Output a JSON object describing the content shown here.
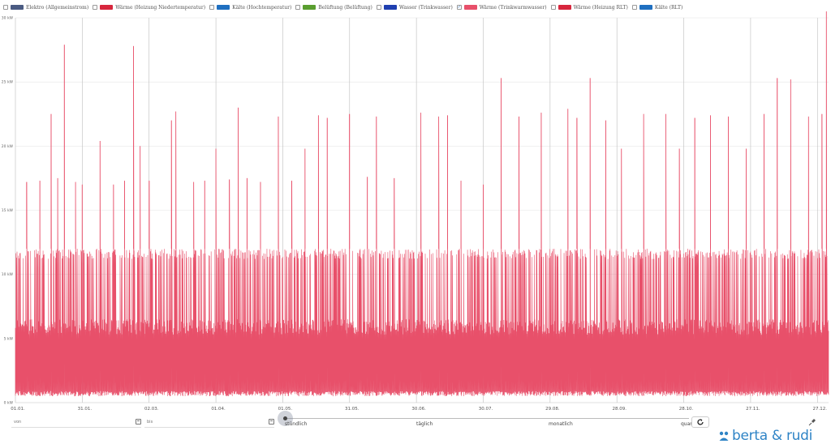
{
  "legend": [
    {
      "label": "Elektro (Allgemeinstrom)",
      "color": "#4a5b82",
      "checked": false
    },
    {
      "label": "Wärme (Heizung Niedertemperatur)",
      "color": "#d7263d",
      "checked": false
    },
    {
      "label": "Kälte (Hochtemperatur)",
      "color": "#1f6fc0",
      "checked": false
    },
    {
      "label": "Belüftung (Belüftung)",
      "color": "#5a9e2f",
      "checked": false
    },
    {
      "label": "Wasser (Trinkwasser)",
      "color": "#1f3fb0",
      "checked": false
    },
    {
      "label": "Wärme (Trinkwarmwasser)",
      "color": "#e8506a",
      "checked": true
    },
    {
      "label": "Wärme (Heizung RLT)",
      "color": "#d7263d",
      "checked": false
    },
    {
      "label": "Kälte (RLT)",
      "color": "#1f6fc0",
      "checked": false
    }
  ],
  "chart_data": {
    "type": "line",
    "ylim": [
      0,
      30
    ],
    "y_ticks": [
      0,
      5,
      10,
      15,
      20,
      25,
      30
    ],
    "y_tick_labels": [
      "0 kW",
      "5 kW",
      "10 kW",
      "15 kW",
      "20 kW",
      "25 kW",
      "30 kW"
    ],
    "x_range_days": [
      0,
      365
    ],
    "x_ticks": [
      {
        "day": 0,
        "label": "01.01."
      },
      {
        "day": 30,
        "label": "31.01."
      },
      {
        "day": 60,
        "label": "02.03."
      },
      {
        "day": 90,
        "label": "01.04."
      },
      {
        "day": 120,
        "label": "01.05."
      },
      {
        "day": 150,
        "label": "31.05."
      },
      {
        "day": 180,
        "label": "30.06."
      },
      {
        "day": 210,
        "label": "30.07."
      },
      {
        "day": 240,
        "label": "29.08."
      },
      {
        "day": 270,
        "label": "28.09."
      },
      {
        "day": 300,
        "label": "28.10."
      },
      {
        "day": 330,
        "label": "27.11."
      },
      {
        "day": 360,
        "label": "27.12."
      }
    ],
    "series": [
      {
        "name": "Wärme (Trinkwarmwasser)",
        "color": "#e8506a",
        "resolution": "stündlich",
        "typical_base_kw": 0.5,
        "typical_low_peak_kw": 6.5,
        "typical_high_peak_kw": 12,
        "spikes": [
          {
            "day": 5,
            "value": 17.2
          },
          {
            "day": 11,
            "value": 17.3
          },
          {
            "day": 16,
            "value": 22.5
          },
          {
            "day": 19,
            "value": 17.5
          },
          {
            "day": 22,
            "value": 27.9
          },
          {
            "day": 27,
            "value": 17.2
          },
          {
            "day": 30,
            "value": 17.0
          },
          {
            "day": 38,
            "value": 20.4
          },
          {
            "day": 44,
            "value": 17.0
          },
          {
            "day": 49,
            "value": 17.3
          },
          {
            "day": 53,
            "value": 27.8
          },
          {
            "day": 56,
            "value": 20.0
          },
          {
            "day": 60,
            "value": 17.3
          },
          {
            "day": 70,
            "value": 22.0
          },
          {
            "day": 72,
            "value": 22.7
          },
          {
            "day": 80,
            "value": 17.2
          },
          {
            "day": 85,
            "value": 17.3
          },
          {
            "day": 90,
            "value": 19.8
          },
          {
            "day": 96,
            "value": 17.4
          },
          {
            "day": 100,
            "value": 23.0
          },
          {
            "day": 104,
            "value": 17.5
          },
          {
            "day": 110,
            "value": 17.2
          },
          {
            "day": 118,
            "value": 22.3
          },
          {
            "day": 124,
            "value": 17.3
          },
          {
            "day": 130,
            "value": 19.8
          },
          {
            "day": 136,
            "value": 22.4
          },
          {
            "day": 140,
            "value": 22.2
          },
          {
            "day": 150,
            "value": 22.5
          },
          {
            "day": 158,
            "value": 17.6
          },
          {
            "day": 162,
            "value": 22.3
          },
          {
            "day": 170,
            "value": 17.5
          },
          {
            "day": 182,
            "value": 22.6
          },
          {
            "day": 190,
            "value": 22.3
          },
          {
            "day": 194,
            "value": 22.4
          },
          {
            "day": 200,
            "value": 17.3
          },
          {
            "day": 210,
            "value": 17.0
          },
          {
            "day": 218,
            "value": 25.3
          },
          {
            "day": 226,
            "value": 22.3
          },
          {
            "day": 236,
            "value": 22.6
          },
          {
            "day": 248,
            "value": 22.9
          },
          {
            "day": 252,
            "value": 22.2
          },
          {
            "day": 258,
            "value": 25.3
          },
          {
            "day": 265,
            "value": 22.0
          },
          {
            "day": 272,
            "value": 19.8
          },
          {
            "day": 282,
            "value": 22.5
          },
          {
            "day": 292,
            "value": 22.5
          },
          {
            "day": 298,
            "value": 19.8
          },
          {
            "day": 305,
            "value": 22.2
          },
          {
            "day": 312,
            "value": 22.4
          },
          {
            "day": 320,
            "value": 22.3
          },
          {
            "day": 328,
            "value": 19.8
          },
          {
            "day": 336,
            "value": 22.5
          },
          {
            "day": 342,
            "value": 25.3
          },
          {
            "day": 348,
            "value": 25.2
          },
          {
            "day": 356,
            "value": 22.3
          },
          {
            "day": 362,
            "value": 22.5
          },
          {
            "day": 364,
            "value": 30.5
          }
        ]
      }
    ],
    "grid": true
  },
  "controls": {
    "from_placeholder": "von",
    "to_placeholder": "bis",
    "slider_labels": [
      "stündlich",
      "täglich",
      "monatlich",
      "quartal"
    ],
    "selected_resolution": "stündlich"
  },
  "logo": {
    "text": "berta & rudi",
    "color": "#2f84c6"
  }
}
